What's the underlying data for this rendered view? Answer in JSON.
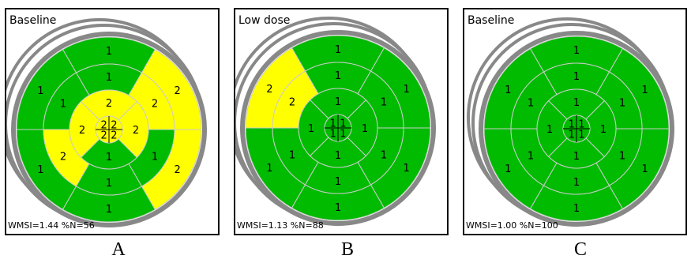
{
  "colors": {
    "normal": "#00bb00",
    "hypokinetic": "#ffff00",
    "grid": "#cccccc",
    "ring": "#888888",
    "frame": "#111111"
  },
  "panels": [
    {
      "letter": "A",
      "title": "Baseline",
      "stats": "WMSI=1.44 %N=56",
      "outer": [
        "1",
        "1",
        "1",
        "1",
        "2",
        "2"
      ],
      "mid": [
        "1",
        "1",
        "2",
        "1",
        "1",
        "2"
      ],
      "apicalRing": [
        "2",
        "2",
        "1",
        "2"
      ],
      "apex": [
        "2",
        "2",
        "2",
        "2"
      ]
    },
    {
      "letter": "B",
      "title": "Low dose",
      "stats": "WMSI=1.13 %N=88",
      "outer": [
        "1",
        "2",
        "1",
        "1",
        "1",
        "1"
      ],
      "mid": [
        "1",
        "2",
        "1",
        "1",
        "1",
        "1"
      ],
      "apicalRing": [
        "1",
        "1",
        "1",
        "1"
      ],
      "apex": [
        "1",
        "1",
        "1",
        "1"
      ]
    },
    {
      "letter": "C",
      "title": "Baseline",
      "stats": "WMSI=1.00 %N=100",
      "outer": [
        "1",
        "1",
        "1",
        "1",
        "1",
        "1"
      ],
      "mid": [
        "1",
        "1",
        "1",
        "1",
        "1",
        "1"
      ],
      "apicalRing": [
        "1",
        "1",
        "1",
        "1"
      ],
      "apex": [
        "1",
        "1",
        "1",
        "1"
      ]
    }
  ]
}
